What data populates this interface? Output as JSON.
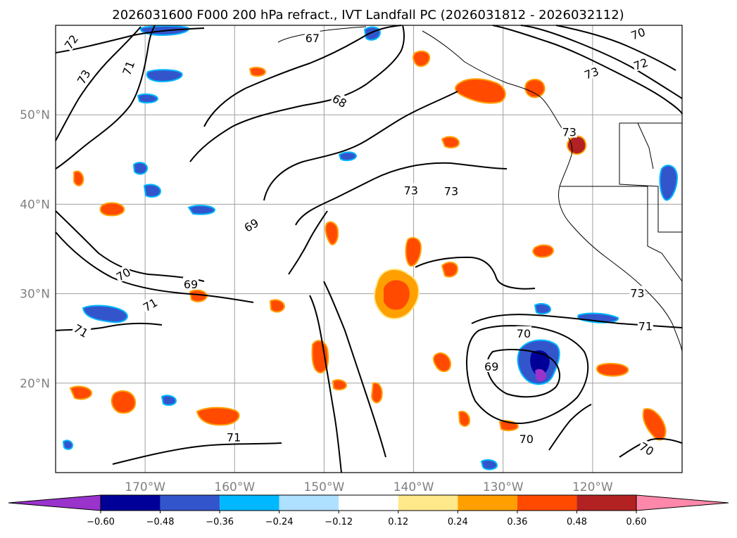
{
  "title": "2026031600 F000 200 hPa refract., IVT Landfall PC (2026031812 - 2026032112)",
  "axes": {
    "lat_labels": [
      "50°N",
      "40°N",
      "30°N",
      "20°N"
    ],
    "lon_labels": [
      "170°W",
      "160°W",
      "150°W",
      "140°W",
      "130°W",
      "120°W"
    ]
  },
  "colorbar": {
    "ticks": [
      "−0.60",
      "−0.48",
      "−0.36",
      "−0.24",
      "−0.12",
      "0.12",
      "0.24",
      "0.36",
      "0.48",
      "0.60"
    ],
    "colors": [
      "#9933cc",
      "#000099",
      "#3355cc",
      "#00b8ff",
      "#aee0ff",
      "#ffffff",
      "#ffe88a",
      "#ffa000",
      "#ff4a00",
      "#b22222",
      "#ff88aa"
    ]
  },
  "contour_labels": [
    {
      "text": "72",
      "lon": -178.2,
      "lat": 58.1,
      "rot": -55
    },
    {
      "text": "73",
      "lon": -176.8,
      "lat": 54.2,
      "rot": -60
    },
    {
      "text": "71",
      "lon": -171.8,
      "lat": 55.2,
      "rot": -70
    },
    {
      "text": "67",
      "lon": -151.3,
      "lat": 58.5,
      "rot": 0
    },
    {
      "text": "68",
      "lon": -148.3,
      "lat": 51.5,
      "rot": 30
    },
    {
      "text": "70",
      "lon": -114.9,
      "lat": 59.0,
      "rot": -20
    },
    {
      "text": "72",
      "lon": -114.6,
      "lat": 55.6,
      "rot": -20
    },
    {
      "text": "73",
      "lon": -120.1,
      "lat": 54.6,
      "rot": -20
    },
    {
      "text": "73",
      "lon": -122.6,
      "lat": 48.0,
      "rot": 0
    },
    {
      "text": "73",
      "lon": -140.3,
      "lat": 41.5,
      "rot": 0
    },
    {
      "text": "73",
      "lon": -135.8,
      "lat": 41.4,
      "rot": 0
    },
    {
      "text": "69",
      "lon": -158.1,
      "lat": 37.6,
      "rot": -30
    },
    {
      "text": "70",
      "lon": -172.4,
      "lat": 32.1,
      "rot": -30
    },
    {
      "text": "69",
      "lon": -164.9,
      "lat": 31.0,
      "rot": 0
    },
    {
      "text": "71",
      "lon": -169.4,
      "lat": 28.7,
      "rot": -30
    },
    {
      "text": "71",
      "lon": -177.2,
      "lat": 25.8,
      "rot": 30
    },
    {
      "text": "73",
      "lon": -115.0,
      "lat": 30.0,
      "rot": 0
    },
    {
      "text": "71",
      "lon": -114.1,
      "lat": 26.3,
      "rot": 0
    },
    {
      "text": "70",
      "lon": -127.7,
      "lat": 25.5,
      "rot": 0
    },
    {
      "text": "69",
      "lon": -131.3,
      "lat": 21.8,
      "rot": 0
    },
    {
      "text": "71",
      "lon": -160.1,
      "lat": 13.9,
      "rot": 0
    },
    {
      "text": "70",
      "lon": -127.4,
      "lat": 13.7,
      "rot": 0
    },
    {
      "text": "70",
      "lon": -114.0,
      "lat": 12.6,
      "rot": 30
    }
  ],
  "icons": {
    "colorbar_min_arrow": "triangle-left",
    "colorbar_max_arrow": "triangle-right"
  }
}
